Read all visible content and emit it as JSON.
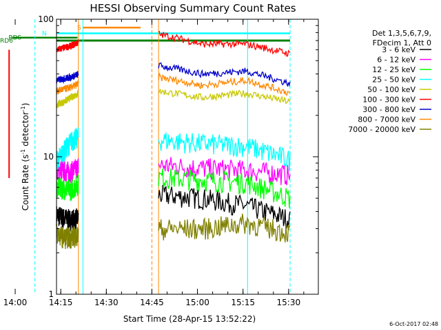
{
  "chart_data": {
    "type": "line",
    "title": "HESSI Observing Summary Count Rates",
    "xlabel": "Start Time (28-Apr-15 13:52:22)",
    "ylabel_main": "Count Rate (s",
    "ylabel_sup1": "-1",
    "ylabel_mid": " detector",
    "ylabel_sup2": "-1",
    "ylabel_end": ")",
    "x_range_minutes": [
      13.6,
      99.8
    ],
    "ylim": [
      1,
      100
    ],
    "yscale": "log",
    "x_ticks": [
      {
        "label": "14:00",
        "minute": 0
      },
      {
        "label": "14:15",
        "minute": 15
      },
      {
        "label": "14:30",
        "minute": 30
      },
      {
        "label": "14:45",
        "minute": 45
      },
      {
        "label": "15:00",
        "minute": 60
      },
      {
        "label": "15:15",
        "minute": 75
      },
      {
        "label": "15:30",
        "minute": 90
      }
    ],
    "y_ticks": [
      {
        "label": "1",
        "value": 1
      },
      {
        "label": "10",
        "value": 10
      },
      {
        "label": "100",
        "value": 100
      }
    ],
    "legend": {
      "header": [
        "Det 1,3,5,6,7,9,",
        "FDecim 1, Att 0"
      ],
      "placement": "right"
    },
    "intervals": [
      [
        -4.5,
        20.8
      ],
      [
        47.2,
        90.5
      ]
    ],
    "series": [
      {
        "name": "3 - 6 keV",
        "color": "#000000",
        "values": [
          3.8,
          3.6,
          3.5,
          3.6,
          5.3,
          5.0,
          4.4,
          3.5
        ]
      },
      {
        "name": "6 - 12 keV",
        "color": "#ff00ff",
        "values": [
          8.2,
          8.0,
          7.8,
          8.5,
          8.7,
          8.3,
          8.0,
          7.4
        ]
      },
      {
        "name": "12 - 25 keV",
        "color": "#00ff00",
        "values": [
          6.0,
          5.9,
          5.8,
          6.4,
          7.1,
          6.8,
          6.5,
          5.0
        ]
      },
      {
        "name": "25 - 50 keV",
        "color": "#00ffff",
        "values": [
          9.3,
          11.0,
          13.0,
          14.0,
          13.3,
          12.5,
          12.0,
          9.5
        ]
      },
      {
        "name": "50 - 100 keV",
        "color": "#c8c800",
        "values": [
          24.0,
          25.0,
          27.0,
          29.0,
          30.0,
          27.0,
          29.0,
          25.0
        ]
      },
      {
        "name": "100 - 300 keV",
        "color": "#ff0000",
        "values": [
          60.0,
          62.0,
          64.0,
          68.0,
          78.0,
          66.0,
          66.0,
          56.0
        ]
      },
      {
        "name": "300 - 800 keV",
        "color": "#0000cc",
        "values": [
          36.0,
          37.0,
          38.0,
          40.0,
          46.0,
          40.0,
          42.0,
          34.0
        ]
      },
      {
        "name": "800 - 7000 keV",
        "color": "#ff8800",
        "values": [
          30.0,
          31.0,
          32.0,
          34.0,
          38.0,
          33.0,
          36.0,
          29.0
        ]
      },
      {
        "name": "7000 - 20000 keV",
        "color": "#808000",
        "values": [
          2.8,
          2.6,
          2.6,
          2.7,
          3.0,
          3.0,
          3.3,
          2.8
        ]
      }
    ],
    "flag_bars": [
      {
        "label": "RD6",
        "color": "#008000",
        "minute_start": 13.6,
        "minute_end": 90.5,
        "value": 70.0,
        "label_minute": -5.0
      },
      {
        "label": "RDS",
        "color": "#008000",
        "minute_start": -1.0,
        "minute_end": 20.5,
        "value": 73.5,
        "label_minute": -2.2
      },
      {
        "label": "N",
        "color": "#00ffff",
        "minute_start": 13.6,
        "minute_end": 90.5,
        "value": 79.0,
        "label_minute": 8.8
      },
      {
        "label": "S",
        "color": "#ff8800",
        "minute_start": 22.3,
        "minute_end": 41.3,
        "value": 87.0,
        "label_minute": 20.4
      }
    ],
    "vertical_lines": [
      {
        "minute": 6.5,
        "color": "#00ffff",
        "style": "dashed"
      },
      {
        "minute": 20.8,
        "color": "#ff8800",
        "style": "solid"
      },
      {
        "minute": 22.3,
        "color": "#00ffff",
        "style": "solid"
      },
      {
        "minute": 45.0,
        "color": "#ff8800",
        "style": "dashed"
      },
      {
        "minute": 47.2,
        "color": "#ff8800",
        "style": "solid"
      },
      {
        "minute": 76.5,
        "color": "#00ffff",
        "style": "solid"
      },
      {
        "minute": 90.5,
        "color": "#00ffff",
        "style": "dashed"
      }
    ],
    "dips": [
      {
        "minute": -2.0,
        "series_index": 5,
        "value": 7.0
      }
    ]
  },
  "footer": {
    "date": "6-Oct-2017 02:48"
  }
}
